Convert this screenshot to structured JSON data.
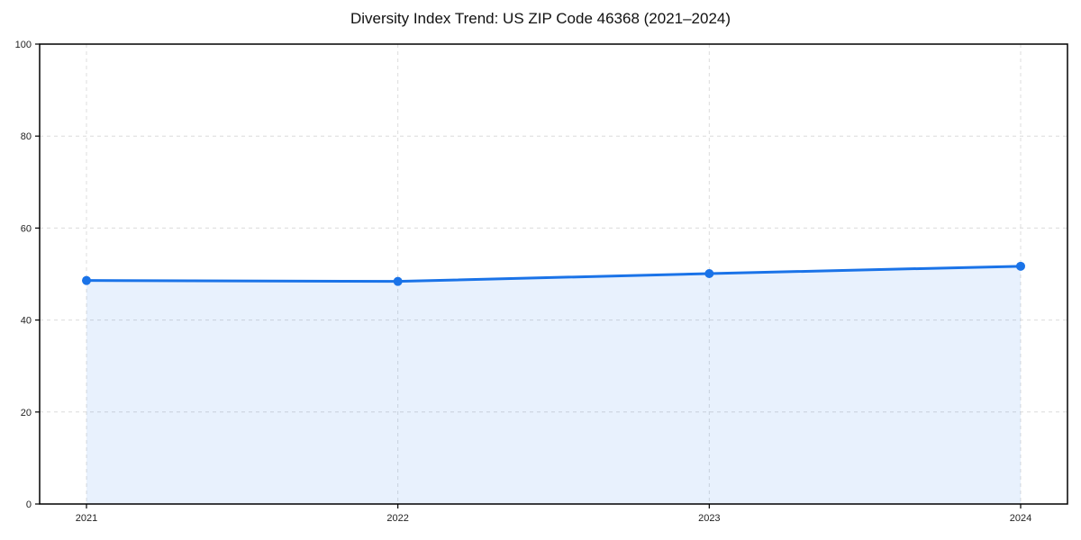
{
  "chart_data": {
    "type": "line",
    "title": "Diversity Index Trend: US ZIP Code 46368 (2021–2024)",
    "x": [
      "2021",
      "2022",
      "2023",
      "2024"
    ],
    "series": [
      {
        "name": "Diversity Index",
        "values": [
          48.6,
          48.4,
          50.1,
          51.7
        ]
      }
    ],
    "xlabel": "",
    "ylabel": "",
    "ylim": [
      0,
      100
    ],
    "yticks": [
      0,
      20,
      40,
      60,
      80,
      100
    ],
    "grid": "dashed-both-axes",
    "legend": "none",
    "area_fill": true,
    "colors": {
      "line": "#1a73e8",
      "marker": "#1a73e8",
      "area_fill_rgba": "rgba(26,115,232,0.10)",
      "gridline": "#dcdcdc",
      "spine": "#000000",
      "tick_label": "#222222",
      "title": "#111111",
      "background": "#ffffff"
    }
  }
}
